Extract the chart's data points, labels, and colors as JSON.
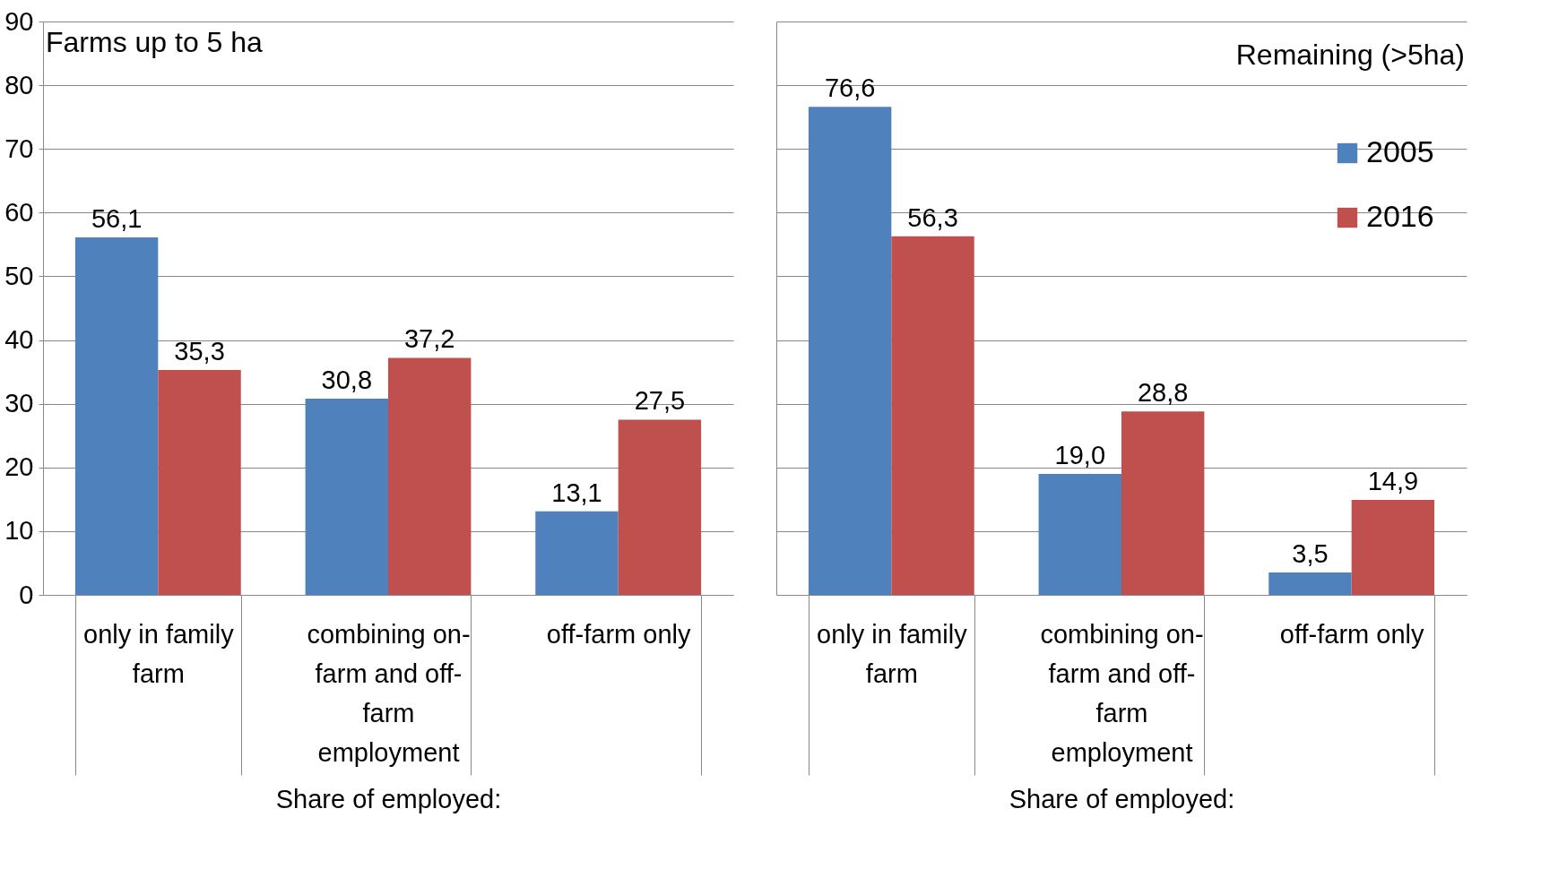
{
  "chart_data": [
    {
      "type": "bar",
      "title": "Farms up to 5 ha",
      "xlabel": "Share of employed:",
      "categories": [
        "only in family farm",
        "combining on-farm and off-farm employment",
        "off-farm only"
      ],
      "ylim": [
        0,
        90
      ],
      "yticks": [
        0,
        10,
        20,
        30,
        40,
        50,
        60,
        70,
        80,
        90
      ],
      "grid": "y",
      "series": [
        {
          "color": "#4f81bd",
          "values": [
            56.1,
            30.8,
            13.1
          ],
          "value_labels": [
            "56,1",
            "30,8",
            "13,1"
          ]
        },
        {
          "color": "#c0504d",
          "values": [
            35.3,
            37.2,
            27.5
          ],
          "value_labels": [
            "35,3",
            "37,2",
            "27,5"
          ]
        }
      ]
    },
    {
      "type": "bar",
      "title": "Remaining (>5ha)",
      "xlabel": "Share of employed:",
      "categories": [
        "only in family farm",
        "combining on-farm and off-farm employment",
        "off-farm only"
      ],
      "ylim": [
        0,
        90
      ],
      "yticks": [
        0,
        10,
        20,
        30,
        40,
        50,
        60,
        70,
        80,
        90
      ],
      "grid": "y",
      "tick_labels": "x",
      "legend": "top right",
      "series": [
        {
          "name": "2005",
          "color": "#4f81bd",
          "values": [
            76.6,
            19.0,
            3.5
          ],
          "value_labels": [
            "76,6",
            "19,0",
            "3,5"
          ]
        },
        {
          "name": "2016",
          "color": "#c0504d",
          "values": [
            56.3,
            28.8,
            14.9
          ],
          "value_labels": [
            "56,3",
            "28,8",
            "14,9"
          ]
        }
      ]
    }
  ]
}
